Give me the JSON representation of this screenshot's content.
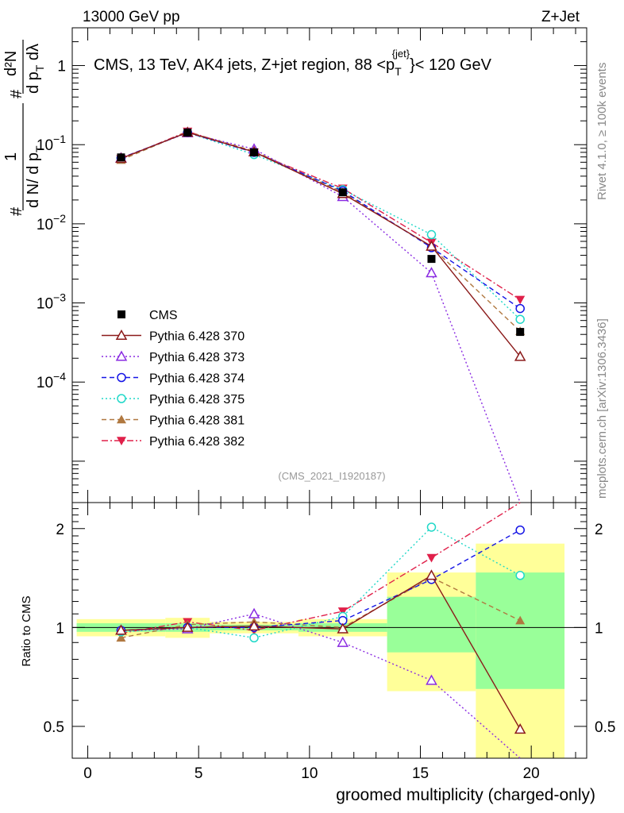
{
  "header": {
    "left": "13000 GeV pp",
    "right": "Z+Jet"
  },
  "side_labels": {
    "rivet": "Rivet 4.1.0, ≥ 100k events",
    "mcplots": "mcplots.cern.ch [arXiv:1306.3436]"
  },
  "colors": {
    "cms": "#000000",
    "370": "#8b1a1a",
    "373": "#8a2be2",
    "374": "#1414e6",
    "375": "#20d8c8",
    "381": "#b07840",
    "382": "#e0204a",
    "band_inner": "#99ff99",
    "band_outer": "#ffff99"
  },
  "chart_data": [
    {
      "type": "scatter",
      "panel": "main",
      "title": "CMS, 13 TeV, AK4 jets, Z+jet region, 88 <p_T^{jet}< 120 GeV",
      "title_parts": {
        "pre": "CMS, 13 TeV, AK4 jets, Z+jet region, 88 <p",
        "sub": "T",
        "sup": "{jet}",
        "post": "}< 120 GeV"
      },
      "ylabel": "1/N dN/dp_T d²N/dp_T dλ",
      "ylabel_parts": {
        "frac1_num": "1",
        "frac1_den": "d N/ d p",
        "frac1_den_sub": "T",
        "frac2_num": "d²N",
        "frac2_den": "d p",
        "frac2_den_sub": "T",
        "frac2_den_post": " dλ",
        "hash": "#"
      },
      "yscale": "log",
      "ylim": [
        3e-06,
        3
      ],
      "xlim": [
        -0.7,
        22.5
      ],
      "analysis_id": "(CMS_2021_I1920187)",
      "y_tick_labels": [
        {
          "value": 1,
          "base": "1",
          "exp": ""
        },
        {
          "value": 0.1,
          "base": "10",
          "exp": "−1"
        },
        {
          "value": 0.01,
          "base": "10",
          "exp": "−2"
        },
        {
          "value": 0.001,
          "base": "10",
          "exp": "−3"
        },
        {
          "value": 0.0001,
          "base": "10",
          "exp": "−4"
        }
      ],
      "legend_position": "left",
      "x": [
        1.5,
        4.5,
        7.5,
        11.5,
        15.5,
        19.5
      ],
      "series": [
        {
          "name": "CMS",
          "key": "cms",
          "marker": "square",
          "line": "none",
          "values": [
            0.069,
            0.142,
            0.08,
            0.025,
            0.0036,
            0.00043
          ]
        },
        {
          "name": "Pythia 6.428 370",
          "key": "370",
          "marker": "triangle-up-open",
          "line": "solid",
          "values": [
            0.067,
            0.143,
            0.081,
            0.024,
            0.0052,
            0.00021
          ]
        },
        {
          "name": "Pythia 6.428 373",
          "key": "373",
          "marker": "triangle-up-open",
          "line": "dotted",
          "values": [
            0.068,
            0.141,
            0.088,
            0.022,
            0.0024,
            0.0
          ]
        },
        {
          "name": "Pythia 6.428 374",
          "key": "374",
          "marker": "circle-open",
          "line": "dashed",
          "values": [
            0.068,
            0.142,
            0.08,
            0.026,
            0.005,
            0.00085
          ]
        },
        {
          "name": "Pythia 6.428 375",
          "key": "375",
          "marker": "circle-open",
          "line": "dotted",
          "values": [
            0.067,
            0.142,
            0.075,
            0.027,
            0.0073,
            0.00062
          ]
        },
        {
          "name": "Pythia 6.428 381",
          "key": "381",
          "marker": "triangle-up-filled",
          "line": "dashed",
          "values": [
            0.064,
            0.145,
            0.083,
            0.025,
            0.0051,
            0.00044
          ]
        },
        {
          "name": "Pythia 6.428 382",
          "key": "382",
          "marker": "triangle-down-filled",
          "line": "dashdot",
          "values": [
            0.066,
            0.147,
            0.08,
            0.028,
            0.0058,
            0.0011
          ]
        }
      ]
    },
    {
      "type": "scatter",
      "panel": "ratio",
      "ylabel": "Ratio to CMS",
      "xlabel": "groomed multiplicity (charged-only)",
      "yscale": "log",
      "ylim": [
        0.4,
        2.4
      ],
      "xlim": [
        -0.7,
        22.5
      ],
      "y_ticks": [
        0.5,
        1,
        2
      ],
      "y_tick_labels": [
        "0.5",
        "1",
        "2"
      ],
      "x_ticks": [
        0,
        5,
        10,
        15,
        20
      ],
      "x_tick_labels": [
        "0",
        "5",
        "10",
        "15",
        "20"
      ],
      "reference_line": 1,
      "x": [
        1.5,
        4.5,
        7.5,
        11.5,
        15.5,
        19.5
      ],
      "bands": [
        {
          "xmin": -0.5,
          "xmax": 3.5,
          "inner": [
            0.97,
            1.03
          ],
          "outer": [
            0.94,
            1.06
          ]
        },
        {
          "xmin": 3.5,
          "xmax": 5.5,
          "inner": [
            0.97,
            1.03
          ],
          "outer": [
            0.93,
            1.07
          ]
        },
        {
          "xmin": 5.5,
          "xmax": 9.5,
          "inner": [
            0.98,
            1.02
          ],
          "outer": [
            0.96,
            1.04
          ]
        },
        {
          "xmin": 9.5,
          "xmax": 13.5,
          "inner": [
            0.97,
            1.03
          ],
          "outer": [
            0.94,
            1.06
          ]
        },
        {
          "xmin": 13.5,
          "xmax": 17.5,
          "inner": [
            0.84,
            1.24
          ],
          "outer": [
            0.64,
            1.47
          ]
        },
        {
          "xmin": 17.5,
          "xmax": 21.5,
          "inner": [
            0.65,
            1.47
          ],
          "outer": [
            0.35,
            1.8
          ]
        }
      ],
      "series": [
        {
          "name": "Pythia 6.428 370",
          "key": "370",
          "values": [
            0.98,
            1.0,
            1.01,
            0.99,
            1.44,
            0.49
          ]
        },
        {
          "name": "Pythia 6.428 373",
          "key": "373",
          "values": [
            0.98,
            0.99,
            1.1,
            0.9,
            0.69,
            0.0
          ]
        },
        {
          "name": "Pythia 6.428 374",
          "key": "374",
          "values": [
            0.98,
            1.0,
            1.0,
            1.05,
            1.4,
            1.98
          ]
        },
        {
          "name": "Pythia 6.428 375",
          "key": "375",
          "values": [
            0.97,
            1.0,
            0.93,
            1.08,
            2.02,
            1.44
          ]
        },
        {
          "name": "Pythia 6.428 381",
          "key": "381",
          "values": [
            0.93,
            1.02,
            1.04,
            1.0,
            1.42,
            1.05
          ]
        },
        {
          "name": "Pythia 6.428 382",
          "key": "382",
          "values": [
            0.96,
            1.04,
            0.98,
            1.12,
            1.63,
            2.55
          ]
        }
      ]
    }
  ]
}
